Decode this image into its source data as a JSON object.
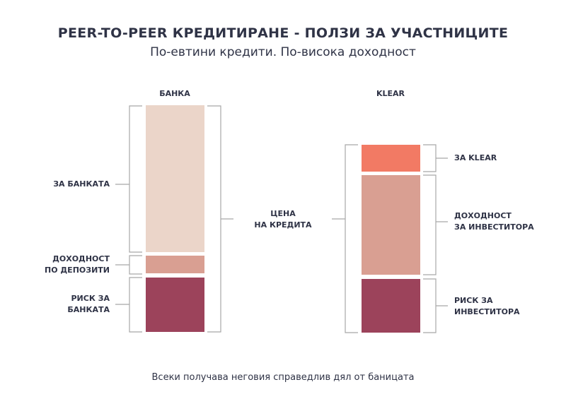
{
  "title": "PEER-TO-PEER КРЕДИТИРАНЕ - ПОЛЗИ ЗА УЧАСТНИЦИТЕ",
  "subtitle": "По-евтини кредити. По-висока доходност",
  "footer": "Всеки получава неговия справедлив дял от баницата",
  "colors": {
    "light": "#ebd5c9",
    "mid": "#d99f92",
    "dark": "#9c435b",
    "coral": "#f27a64",
    "bracket": "#a8a8a8"
  },
  "bank": {
    "label": "БАНКА",
    "segments": [
      {
        "line1": "ЗА БАНКАТА",
        "line2": "",
        "color": "#ebd5c9"
      },
      {
        "line1": "ДОХОДНОСТ",
        "line2": "ПО ДЕПОЗИТИ",
        "color": "#d99f92"
      },
      {
        "line1": "РИСК ЗА",
        "line2": "БАНКАТА",
        "color": "#9c435b"
      }
    ]
  },
  "center": {
    "line1": "ЦЕНА",
    "line2": "НА КРЕДИТА"
  },
  "klear": {
    "label": "KLEAR",
    "segments": [
      {
        "line1": "ЗА KLEAR",
        "line2": "",
        "color": "#f27a64"
      },
      {
        "line1": "ДОХОДНОСТ",
        "line2": "ЗА ИНВЕСТИТОРА",
        "color": "#d99f92"
      },
      {
        "line1": "РИСК ЗА",
        "line2": "ИНВЕСТИТОРА",
        "color": "#9c435b"
      }
    ]
  }
}
